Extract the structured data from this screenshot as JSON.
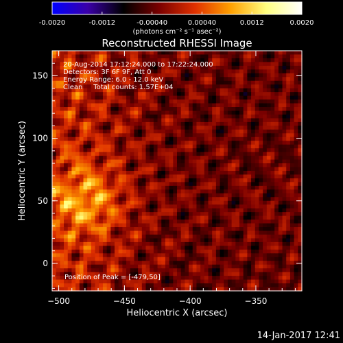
{
  "colors": {
    "background": "#000000",
    "axis": "#ffffff",
    "text": "#ffffff"
  },
  "colorbar": {
    "ticks": [
      "-0.0020",
      "-0.0012",
      "-0.00040",
      "0.00040",
      "0.0012",
      "0.0020"
    ],
    "tick_values": [
      -0.002,
      -0.0012,
      -0.0004,
      0.0004,
      0.0012,
      0.002
    ],
    "range": [
      -0.002,
      0.002
    ],
    "unit_label": "(photons cm⁻² s⁻¹ asec⁻²)",
    "colormap": [
      "#0000ff",
      "#3a00a8",
      "#000000",
      "#7a0000",
      "#e03000",
      "#ffa000",
      "#ffff80",
      "#ffffff"
    ]
  },
  "info": {
    "line1": "20-Aug-2014 17:12:24.000 to 17:22:24.000",
    "line2": "Detectors: 3F 6F 9F, Att 0",
    "line3": "Energy Range: 6.0 - 12.0 keV",
    "line4": "Clean     Total counts: 1.57E+04",
    "peak": "Position of Peak = [-479,50]"
  },
  "footer": {
    "timestamp": "14-Jan-2017 12:41"
  },
  "chart_data": {
    "type": "heatmap",
    "title": "Reconstructed RHESSI Image",
    "xlabel": "Heliocentric X (arcsec)",
    "ylabel": "Heliocentric Y (arcsec)",
    "xlim": [
      -505,
      -315
    ],
    "ylim": [
      -22,
      170
    ],
    "xticks": [
      -500,
      -450,
      -400,
      -350
    ],
    "yticks": [
      0,
      50,
      100,
      150
    ],
    "peak_position": [
      -479,
      50
    ],
    "grid": false
  }
}
